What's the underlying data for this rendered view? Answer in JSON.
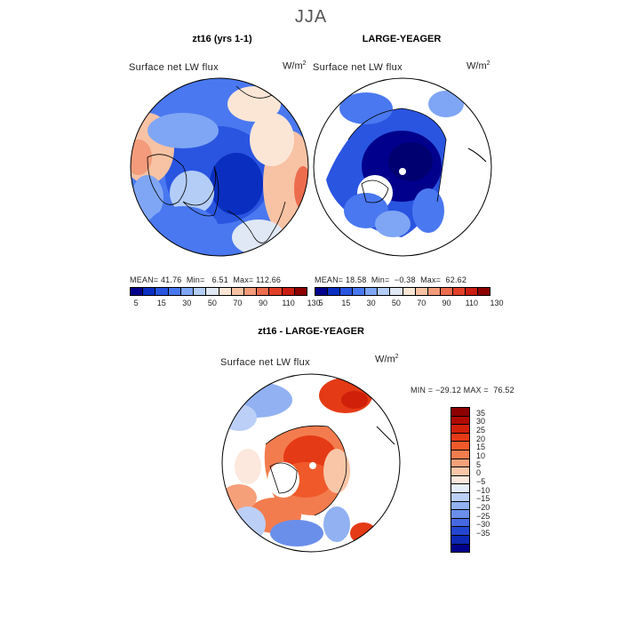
{
  "title": "JJA",
  "chart_data": [
    {
      "type": "heatmap",
      "title": "zt16 (yrs 1-1)",
      "variable": "Surface net LW flux",
      "units": "W/m",
      "units_exp": "2",
      "stats": {
        "mean": "41.76",
        "min": "6.51",
        "max": "112.66"
      },
      "stats_labels": {
        "mean": "MEAN=",
        "min": "Min=",
        "max": "Max="
      },
      "colorbar_ticks": [
        "5",
        "15",
        "30",
        "50",
        "70",
        "90",
        "110",
        "130"
      ],
      "colorbar_colors": [
        "#00008c",
        "#0a2fc0",
        "#2a55e0",
        "#4a78f0",
        "#7fa6f5",
        "#b3cdf7",
        "#e0e8f5",
        "#fbe6d6",
        "#f8c2a4",
        "#f39b7a",
        "#ec6c4e",
        "#e2402a",
        "#c91d12",
        "#8c0000"
      ]
    },
    {
      "type": "heatmap",
      "title": "LARGE-YEAGER",
      "variable": "Surface net LW flux",
      "units": "W/m",
      "units_exp": "2",
      "stats": {
        "mean": "18.58",
        "min": "−0.38",
        "max": "62.62"
      },
      "stats_labels": {
        "mean": "MEAN=",
        "min": "Min=",
        "max": "Max="
      },
      "colorbar_ticks": [
        "5",
        "15",
        "30",
        "50",
        "70",
        "90",
        "110",
        "130"
      ],
      "colorbar_colors": [
        "#00008c",
        "#0a2fc0",
        "#2a55e0",
        "#4a78f0",
        "#7fa6f5",
        "#b3cdf7",
        "#e0e8f5",
        "#fbe6d6",
        "#f8c2a4",
        "#f39b7a",
        "#ec6c4e",
        "#e2402a",
        "#c91d12",
        "#8c0000"
      ]
    },
    {
      "type": "heatmap",
      "title": "zt16 - LARGE-YEAGER",
      "variable": "Surface net LW flux",
      "units": "W/m",
      "units_exp": "2",
      "min_max_text": "MIN = −29.12 MAX =  76.52",
      "colorbar_ticks": [
        "35",
        "30",
        "25",
        "20",
        "15",
        "10",
        "5",
        "0",
        "−5",
        "−10",
        "−15",
        "−20",
        "−25",
        "−30",
        "−35"
      ],
      "colorbar_colors": [
        "#8c0000",
        "#b00a00",
        "#d0200a",
        "#e53a16",
        "#f05a2a",
        "#f37c4e",
        "#f6a07a",
        "#f9c6a8",
        "#fce8dc",
        "#e6eefb",
        "#bcd0f7",
        "#91b1f2",
        "#6a8fea",
        "#4569e0",
        "#2346cf",
        "#0c28b4",
        "#00008c"
      ]
    }
  ]
}
